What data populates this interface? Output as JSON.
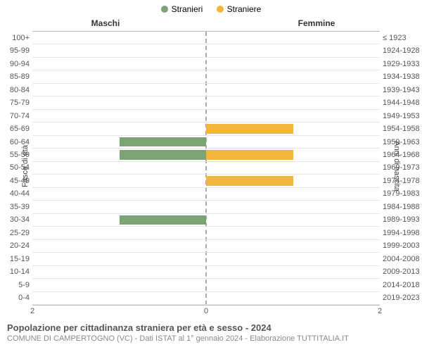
{
  "chart": {
    "type": "pyramid-bar",
    "legend": [
      {
        "label": "Stranieri",
        "color": "#7ba373"
      },
      {
        "label": "Straniere",
        "color": "#f2b63c"
      }
    ],
    "header_left": "Maschi",
    "header_right": "Femmine",
    "y_axis_left_label": "Fasce di età",
    "y_axis_right_label": "Anni di nascita",
    "xlim": 2,
    "x_ticks_left": [
      2,
      0
    ],
    "x_ticks_right": [
      0,
      2
    ],
    "grid_color": "#e6e6e6",
    "border_color": "#bbbbbb",
    "center_line_color": "#aaaaaa",
    "background_color": "#ffffff",
    "bar_color_male": "#7ba373",
    "bar_color_female": "#f2b63c",
    "axis_font_size_pt": 9,
    "legend_font_size_pt": 9,
    "header_font_size_pt": 9,
    "rows": [
      {
        "age": "100+",
        "birth": "≤ 1923",
        "m": 0,
        "f": 0
      },
      {
        "age": "95-99",
        "birth": "1924-1928",
        "m": 0,
        "f": 0
      },
      {
        "age": "90-94",
        "birth": "1929-1933",
        "m": 0,
        "f": 0
      },
      {
        "age": "85-89",
        "birth": "1934-1938",
        "m": 0,
        "f": 0
      },
      {
        "age": "80-84",
        "birth": "1939-1943",
        "m": 0,
        "f": 0
      },
      {
        "age": "75-79",
        "birth": "1944-1948",
        "m": 0,
        "f": 0
      },
      {
        "age": "70-74",
        "birth": "1949-1953",
        "m": 0,
        "f": 0
      },
      {
        "age": "65-69",
        "birth": "1954-1958",
        "m": 0,
        "f": 1
      },
      {
        "age": "60-64",
        "birth": "1959-1963",
        "m": 1,
        "f": 0
      },
      {
        "age": "55-59",
        "birth": "1964-1968",
        "m": 1,
        "f": 1
      },
      {
        "age": "50-54",
        "birth": "1969-1973",
        "m": 0,
        "f": 0
      },
      {
        "age": "45-49",
        "birth": "1974-1978",
        "m": 0,
        "f": 1
      },
      {
        "age": "40-44",
        "birth": "1979-1983",
        "m": 0,
        "f": 0
      },
      {
        "age": "35-39",
        "birth": "1984-1988",
        "m": 0,
        "f": 0
      },
      {
        "age": "30-34",
        "birth": "1989-1993",
        "m": 1,
        "f": 0
      },
      {
        "age": "25-29",
        "birth": "1994-1998",
        "m": 0,
        "f": 0
      },
      {
        "age": "20-24",
        "birth": "1999-2003",
        "m": 0,
        "f": 0
      },
      {
        "age": "15-19",
        "birth": "2004-2008",
        "m": 0,
        "f": 0
      },
      {
        "age": "10-14",
        "birth": "2009-2013",
        "m": 0,
        "f": 0
      },
      {
        "age": "5-9",
        "birth": "2014-2018",
        "m": 0,
        "f": 0
      },
      {
        "age": "0-4",
        "birth": "2019-2023",
        "m": 0,
        "f": 0
      }
    ]
  },
  "footer": {
    "title": "Popolazione per cittadinanza straniera per età e sesso - 2024",
    "subtitle": "COMUNE DI CAMPERTOGNO (VC) - Dati ISTAT al 1° gennaio 2024 - Elaborazione TUTTITALIA.IT",
    "title_color": "#555555",
    "subtitle_color": "#888888",
    "title_font_size_pt": 10,
    "subtitle_font_size_pt": 8
  }
}
